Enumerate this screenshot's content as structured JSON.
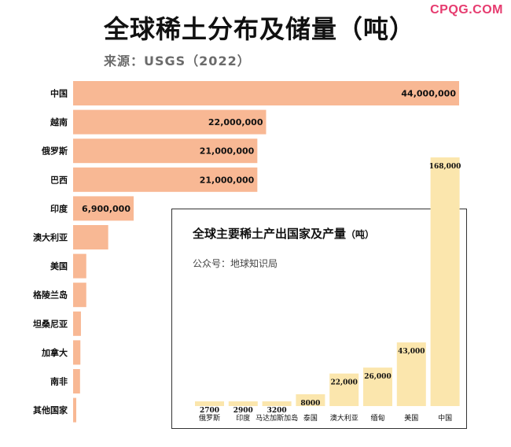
{
  "watermark": "CPQG.COM",
  "title": "全球稀土分布及储量（吨）",
  "source": "来源：USGS（2022）",
  "colors": {
    "reserve_bar": "#f8b894",
    "production_bar": "#fbe6ad",
    "text": "#111111"
  },
  "chart_data": [
    {
      "type": "bar",
      "orientation": "horizontal",
      "title": "全球稀土分布及储量（吨）",
      "categories": [
        "中国",
        "越南",
        "俄罗斯",
        "巴西",
        "印度",
        "澳大利亚",
        "美国",
        "格陵兰岛",
        "坦桑尼亚",
        "加拿大",
        "南非",
        "其他国家"
      ],
      "values": [
        44000000,
        22000000,
        21000000,
        21000000,
        6900000,
        4000000,
        1500000,
        1500000,
        890000,
        830000,
        790000,
        280000
      ],
      "value_labels": [
        "44,000,000",
        "22,000,000",
        "21,000,000",
        "21,000,000",
        "6,900,000",
        "",
        "",
        "",
        "",
        "",
        "",
        ""
      ],
      "xlim": [
        0,
        44000000
      ]
    },
    {
      "type": "bar",
      "orientation": "vertical",
      "title": "全球主要稀土产出国家及产量",
      "title_unit": "（吨）",
      "subtitle": "公众号：地球知识局",
      "categories": [
        "俄罗斯",
        "印度",
        "马达加斯加岛",
        "泰国",
        "澳大利亚",
        "缅甸",
        "美国",
        "中国"
      ],
      "values": [
        2700,
        2900,
        3200,
        8000,
        22000,
        26000,
        43000,
        168000
      ],
      "value_labels": [
        "2700",
        "2900",
        "3200",
        "8000",
        "22,000",
        "26,000",
        "43,000",
        "168,000"
      ],
      "ylim": [
        0,
        168000
      ]
    }
  ]
}
